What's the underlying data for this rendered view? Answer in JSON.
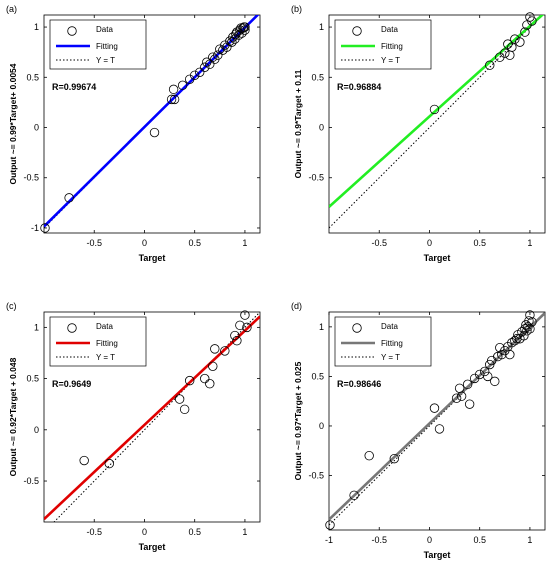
{
  "colors": {
    "axis": "#000000",
    "marker": "#000000",
    "identity": "#000000"
  },
  "chart_data": [
    {
      "type": "scatter",
      "panel_label": "(a)",
      "xlabel": "Target",
      "ylabel": "Output ~= 0.99*Target+ 0.0054",
      "r_label": "R=0.99674",
      "xlim": [
        -1.0,
        1.15
      ],
      "ylim": [
        -1.05,
        1.12
      ],
      "xticks": [
        -0.5,
        0,
        0.5,
        1
      ],
      "xtick_labels": [
        "-0.5",
        "0",
        "0.5",
        "1"
      ],
      "yticks": [
        -1,
        -0.5,
        0,
        0.5,
        1
      ],
      "ytick_labels": [
        "-1",
        "-0.5",
        "0",
        "0.5",
        "1"
      ],
      "fit": {
        "slope": 0.99,
        "intercept": 0.0054,
        "color": "#0000ff"
      },
      "legend": {
        "position": "top-left",
        "entries": [
          "Data",
          "Fitting",
          "Y = T"
        ]
      },
      "grid": false,
      "points": [
        [
          -1.0,
          -1.0
        ],
        [
          -0.75,
          -0.7
        ],
        [
          0.1,
          -0.05
        ],
        [
          0.27,
          0.28
        ],
        [
          0.29,
          0.38
        ],
        [
          0.3,
          0.28
        ],
        [
          0.38,
          0.42
        ],
        [
          0.45,
          0.48
        ],
        [
          0.5,
          0.52
        ],
        [
          0.55,
          0.55
        ],
        [
          0.6,
          0.6
        ],
        [
          0.62,
          0.65
        ],
        [
          0.65,
          0.63
        ],
        [
          0.68,
          0.7
        ],
        [
          0.7,
          0.68
        ],
        [
          0.73,
          0.72
        ],
        [
          0.75,
          0.78
        ],
        [
          0.78,
          0.77
        ],
        [
          0.8,
          0.82
        ],
        [
          0.82,
          0.8
        ],
        [
          0.85,
          0.86
        ],
        [
          0.87,
          0.85
        ],
        [
          0.88,
          0.9
        ],
        [
          0.9,
          0.88
        ],
        [
          0.91,
          0.93
        ],
        [
          0.92,
          0.95
        ],
        [
          0.94,
          0.92
        ],
        [
          0.95,
          0.97
        ],
        [
          0.96,
          0.99
        ],
        [
          0.97,
          0.94
        ],
        [
          0.98,
          0.99
        ],
        [
          0.99,
          1.0
        ],
        [
          1.0,
          0.97
        ],
        [
          1.0,
          1.0
        ]
      ]
    },
    {
      "type": "scatter",
      "panel_label": "(b)",
      "xlabel": "Target",
      "ylabel": "Output ~= 0.9*Target + 0.11",
      "r_label": "R=0.96884",
      "xlim": [
        -1.0,
        1.15
      ],
      "ylim": [
        -1.05,
        1.12
      ],
      "xticks": [
        -0.5,
        0,
        0.5,
        1
      ],
      "xtick_labels": [
        "-0.5",
        "0",
        "0.5",
        "1"
      ],
      "yticks": [
        -0.5,
        0,
        0.5,
        1
      ],
      "ytick_labels": [
        "-0.5",
        "0",
        "0.5",
        "1"
      ],
      "fit": {
        "slope": 0.9,
        "intercept": 0.11,
        "color": "#22ee22"
      },
      "legend": {
        "position": "top-left",
        "entries": [
          "Data",
          "Fitting",
          "Y = T"
        ]
      },
      "grid": false,
      "points": [
        [
          0.05,
          0.18
        ],
        [
          0.6,
          0.62
        ],
        [
          0.7,
          0.7
        ],
        [
          0.75,
          0.74
        ],
        [
          0.78,
          0.83
        ],
        [
          0.8,
          0.72
        ],
        [
          0.82,
          0.8
        ],
        [
          0.85,
          0.88
        ],
        [
          0.9,
          0.85
        ],
        [
          0.95,
          0.95
        ],
        [
          0.97,
          1.02
        ],
        [
          1.0,
          1.1
        ],
        [
          1.02,
          1.06
        ]
      ]
    },
    {
      "type": "scatter",
      "panel_label": "(c)",
      "xlabel": "Target",
      "ylabel": "Output ~= 0.92*Target + 0.048",
      "r_label": "R=0.9649",
      "xlim": [
        -1.0,
        1.15
      ],
      "ylim": [
        -0.9,
        1.15
      ],
      "xticks": [
        -0.5,
        0,
        0.5,
        1
      ],
      "xtick_labels": [
        "-0.5",
        "0",
        "0.5",
        "1"
      ],
      "yticks": [
        -0.5,
        0,
        0.5,
        1
      ],
      "ytick_labels": [
        "-0.5",
        "0",
        "0.5",
        "1"
      ],
      "fit": {
        "slope": 0.92,
        "intercept": 0.048,
        "color": "#e00000"
      },
      "legend": {
        "position": "top-left",
        "entries": [
          "Data",
          "Fitting",
          "Y = T"
        ]
      },
      "grid": false,
      "points": [
        [
          -0.6,
          -0.3
        ],
        [
          -0.35,
          -0.33
        ],
        [
          0.35,
          0.3
        ],
        [
          0.4,
          0.2
        ],
        [
          0.45,
          0.48
        ],
        [
          0.6,
          0.5
        ],
        [
          0.65,
          0.45
        ],
        [
          0.68,
          0.62
        ],
        [
          0.7,
          0.79
        ],
        [
          0.8,
          0.77
        ],
        [
          0.9,
          0.92
        ],
        [
          0.92,
          0.87
        ],
        [
          0.95,
          1.02
        ],
        [
          1.0,
          1.12
        ],
        [
          1.02,
          1.0
        ]
      ]
    },
    {
      "type": "scatter",
      "panel_label": "(d)",
      "xlabel": "Target",
      "ylabel": "Output ~= 0.97*Target + 0.025",
      "r_label": "R=0.98646",
      "xlim": [
        -1.0,
        1.15
      ],
      "ylim": [
        -1.05,
        1.15
      ],
      "xticks": [
        -1,
        -0.5,
        0,
        0.5,
        1
      ],
      "xtick_labels": [
        "-1",
        "-0.5",
        "0",
        "0.5",
        "1"
      ],
      "yticks": [
        -0.5,
        0,
        0.5,
        1
      ],
      "ytick_labels": [
        "-0.5",
        "0",
        "0.5",
        "1"
      ],
      "fit": {
        "slope": 0.97,
        "intercept": 0.025,
        "color": "#777777"
      },
      "legend": {
        "position": "top-left",
        "entries": [
          "Data",
          "Fitting",
          "Y = T"
        ]
      },
      "grid": false,
      "points": [
        [
          -1.0,
          -1.0
        ],
        [
          -0.75,
          -0.7
        ],
        [
          -0.6,
          -0.3
        ],
        [
          -0.35,
          -0.33
        ],
        [
          0.05,
          0.18
        ],
        [
          0.1,
          -0.03
        ],
        [
          0.27,
          0.28
        ],
        [
          0.3,
          0.38
        ],
        [
          0.32,
          0.3
        ],
        [
          0.38,
          0.42
        ],
        [
          0.4,
          0.22
        ],
        [
          0.45,
          0.48
        ],
        [
          0.5,
          0.52
        ],
        [
          0.55,
          0.55
        ],
        [
          0.58,
          0.5
        ],
        [
          0.6,
          0.62
        ],
        [
          0.62,
          0.66
        ],
        [
          0.65,
          0.45
        ],
        [
          0.68,
          0.7
        ],
        [
          0.7,
          0.79
        ],
        [
          0.72,
          0.72
        ],
        [
          0.75,
          0.76
        ],
        [
          0.78,
          0.8
        ],
        [
          0.8,
          0.72
        ],
        [
          0.82,
          0.84
        ],
        [
          0.85,
          0.86
        ],
        [
          0.87,
          0.88
        ],
        [
          0.88,
          0.92
        ],
        [
          0.9,
          0.88
        ],
        [
          0.92,
          0.95
        ],
        [
          0.94,
          0.91
        ],
        [
          0.95,
          0.98
        ],
        [
          0.96,
          1.02
        ],
        [
          0.97,
          0.96
        ],
        [
          0.98,
          1.0
        ],
        [
          0.99,
          1.06
        ],
        [
          1.0,
          1.12
        ],
        [
          1.0,
          0.98
        ],
        [
          1.02,
          1.05
        ]
      ]
    }
  ]
}
